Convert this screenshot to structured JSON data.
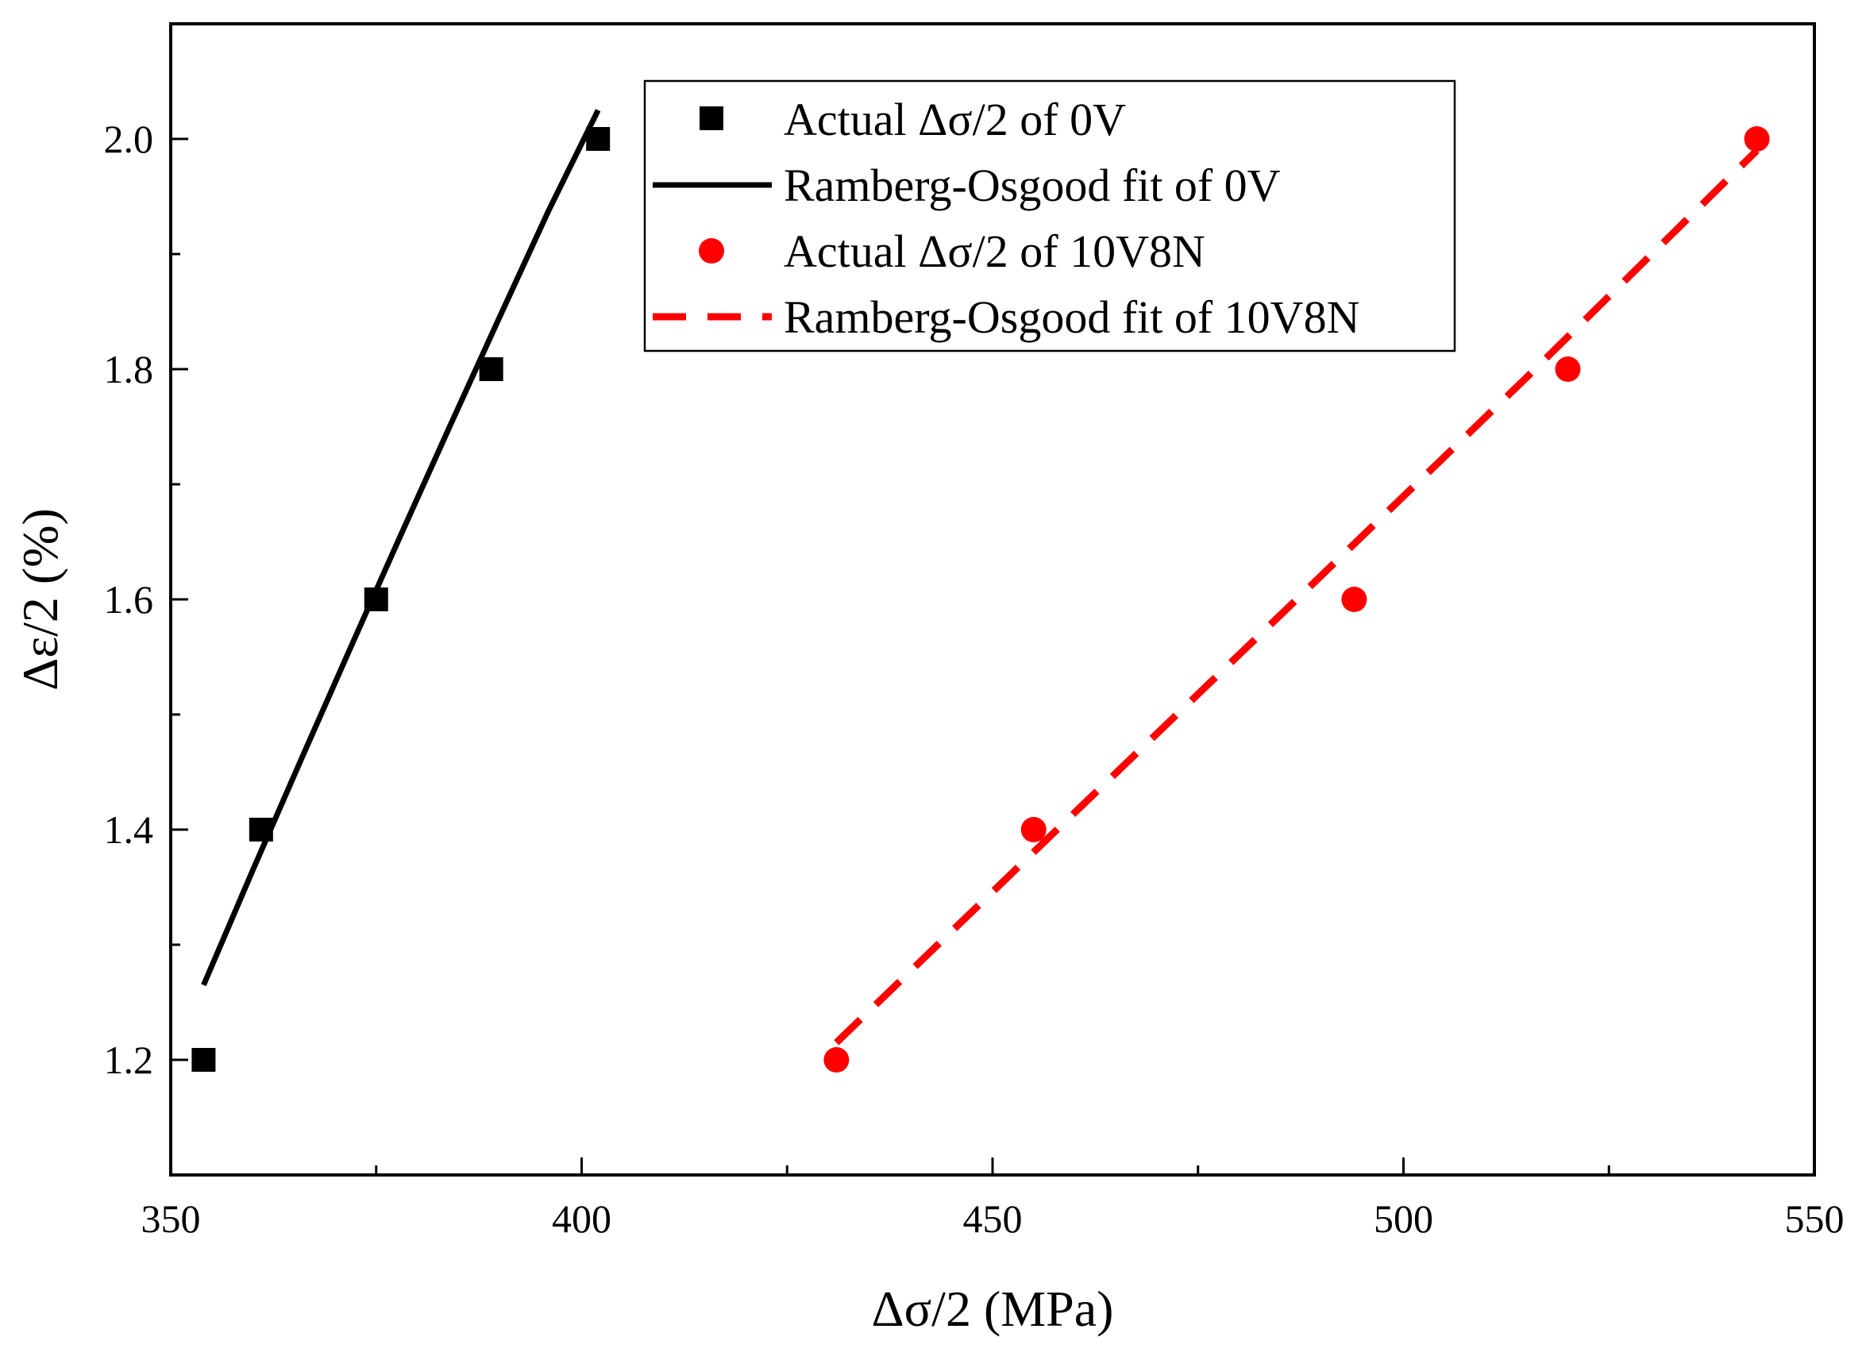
{
  "chart_data": {
    "type": "scatter",
    "title": "",
    "xlabel": "Δσ/2 (MPa)",
    "ylabel": "Δε/2 (%)",
    "xlim": [
      350,
      550
    ],
    "ylim": [
      1.1,
      2.1
    ],
    "x_ticks": [
      350,
      400,
      450,
      500,
      550
    ],
    "x_tick_labels": [
      "350",
      "400",
      "450",
      "500",
      "550"
    ],
    "x_minor_ticks": [
      375,
      425,
      475,
      525
    ],
    "y_ticks": [
      1.2,
      1.4,
      1.6,
      1.8,
      2.0
    ],
    "y_tick_labels": [
      "1.2",
      "1.4",
      "1.6",
      "1.8",
      "2.0"
    ],
    "y_minor_ticks": [
      1.3,
      1.5,
      1.7,
      1.9
    ],
    "grid": false,
    "legend_position": "top-center",
    "series": [
      {
        "name": "Actual Δσ/2 of 0V",
        "kind": "scatter",
        "marker": "square",
        "color": "#000000",
        "x": [
          354,
          361,
          375,
          389,
          402
        ],
        "y": [
          1.2,
          1.4,
          1.6,
          1.8,
          2.0
        ]
      },
      {
        "name": "Ramberg-Osgood fit of 0V",
        "kind": "line",
        "line_style": "solid",
        "color": "#000000",
        "x": [
          354,
          360,
          366,
          372,
          378,
          384,
          390,
          396,
          402
        ],
        "y": [
          1.265,
          1.365,
          1.463,
          1.56,
          1.656,
          1.751,
          1.845,
          1.938,
          2.025
        ]
      },
      {
        "name": "Actual Δσ/2 of 10V8N",
        "kind": "scatter",
        "marker": "circle",
        "color": "#ff0000",
        "x": [
          431,
          455,
          494,
          520,
          543
        ],
        "y": [
          1.2,
          1.4,
          1.6,
          1.8,
          2.0
        ]
      },
      {
        "name": "Ramberg-Osgood fit of 10V8N",
        "kind": "line",
        "line_style": "dashed",
        "color": "#ff0000",
        "x": [
          431,
          459,
          487,
          515,
          543
        ],
        "y": [
          1.215,
          1.408,
          1.6,
          1.793,
          1.99
        ]
      }
    ]
  }
}
